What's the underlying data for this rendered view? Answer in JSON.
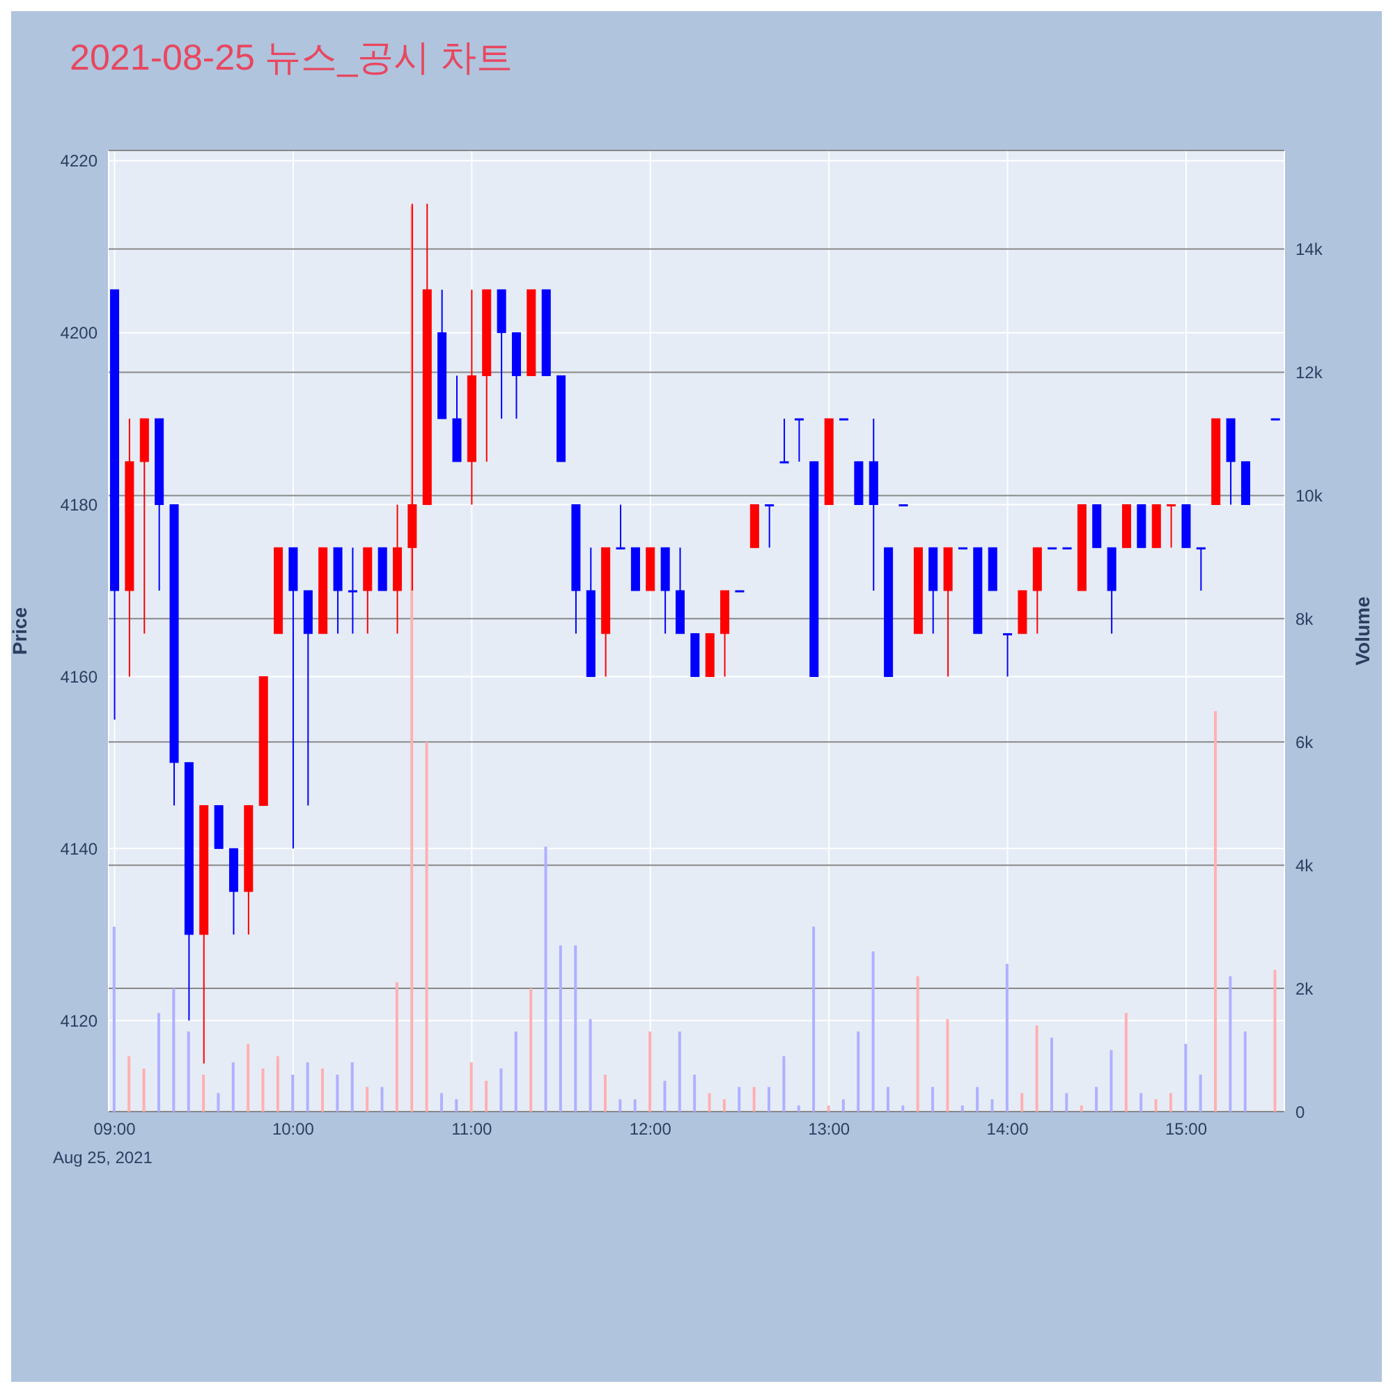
{
  "chart_data": {
    "type": "candlestick",
    "title": "2021-08-25 뉴스_공시 차트",
    "ylabel": "Price",
    "y2label": "Volume",
    "annotations": [
      "Aug 25, 2021"
    ],
    "x": [
      "2021-08-25T09:00",
      "2021-08-25T09:05",
      "2021-08-25T09:10",
      "2021-08-25T09:15",
      "2021-08-25T09:20",
      "2021-08-25T09:25",
      "2021-08-25T09:30",
      "2021-08-25T09:35",
      "2021-08-25T09:40",
      "2021-08-25T09:45",
      "2021-08-25T09:50",
      "2021-08-25T09:55",
      "2021-08-25T10:00",
      "2021-08-25T10:05",
      "2021-08-25T10:10",
      "2021-08-25T10:15",
      "2021-08-25T10:20",
      "2021-08-25T10:25",
      "2021-08-25T10:30",
      "2021-08-25T10:35",
      "2021-08-25T10:40",
      "2021-08-25T10:45",
      "2021-08-25T10:50",
      "2021-08-25T10:55",
      "2021-08-25T11:00",
      "2021-08-25T11:05",
      "2021-08-25T11:10",
      "2021-08-25T11:15",
      "2021-08-25T11:20",
      "2021-08-25T11:25",
      "2021-08-25T11:30",
      "2021-08-25T11:35",
      "2021-08-25T11:40",
      "2021-08-25T11:45",
      "2021-08-25T11:50",
      "2021-08-25T11:55",
      "2021-08-25T12:00",
      "2021-08-25T12:05",
      "2021-08-25T12:10",
      "2021-08-25T12:15",
      "2021-08-25T12:20",
      "2021-08-25T12:25",
      "2021-08-25T12:30",
      "2021-08-25T12:35",
      "2021-08-25T12:40",
      "2021-08-25T12:45",
      "2021-08-25T12:50",
      "2021-08-25T12:55",
      "2021-08-25T13:00",
      "2021-08-25T13:05",
      "2021-08-25T13:10",
      "2021-08-25T13:15",
      "2021-08-25T13:20",
      "2021-08-25T13:25",
      "2021-08-25T13:30",
      "2021-08-25T13:35",
      "2021-08-25T13:40",
      "2021-08-25T13:45",
      "2021-08-25T13:50",
      "2021-08-25T13:55",
      "2021-08-25T14:00",
      "2021-08-25T14:05",
      "2021-08-25T14:10",
      "2021-08-25T14:15",
      "2021-08-25T14:20",
      "2021-08-25T14:25",
      "2021-08-25T14:30",
      "2021-08-25T14:35",
      "2021-08-25T14:40",
      "2021-08-25T14:45",
      "2021-08-25T14:50",
      "2021-08-25T14:55",
      "2021-08-25T15:00",
      "2021-08-25T15:05",
      "2021-08-25T15:10",
      "2021-08-25T15:15",
      "2021-08-25T15:20",
      "2021-08-25T15:30"
    ],
    "series": [
      {
        "ohlc": [
          [
            4205,
            4205,
            4155,
            4170
          ],
          [
            4170,
            4190,
            4160,
            4185
          ],
          [
            4185,
            4190,
            4165,
            4190
          ],
          [
            4190,
            4190,
            4170,
            4180
          ],
          [
            4180,
            4180,
            4145,
            4150
          ],
          [
            4150,
            4150,
            4120,
            4130
          ],
          [
            4130,
            4145,
            4115,
            4145
          ],
          [
            4145,
            4145,
            4140,
            4140
          ],
          [
            4140,
            4140,
            4130,
            4135
          ],
          [
            4135,
            4145,
            4130,
            4145
          ],
          [
            4145,
            4160,
            4145,
            4160
          ],
          [
            4165,
            4175,
            4165,
            4175
          ],
          [
            4175,
            4175,
            4140,
            4170
          ],
          [
            4170,
            4170,
            4145,
            4165
          ],
          [
            4165,
            4175,
            4165,
            4175
          ],
          [
            4175,
            4175,
            4165,
            4170
          ],
          [
            4170,
            4175,
            4165,
            4170
          ],
          [
            4170,
            4175,
            4165,
            4175
          ],
          [
            4175,
            4175,
            4170,
            4170
          ],
          [
            4170,
            4180,
            4165,
            4175
          ],
          [
            4175,
            4215,
            4170,
            4180
          ],
          [
            4180,
            4215,
            4180,
            4205
          ],
          [
            4200,
            4205,
            4190,
            4190
          ],
          [
            4190,
            4195,
            4185,
            4185
          ],
          [
            4185,
            4205,
            4180,
            4195
          ],
          [
            4195,
            4205,
            4185,
            4205
          ],
          [
            4205,
            4205,
            4190,
            4200
          ],
          [
            4200,
            4200,
            4190,
            4195
          ],
          [
            4195,
            4205,
            4195,
            4205
          ],
          [
            4205,
            4205,
            4195,
            4195
          ],
          [
            4195,
            4195,
            4185,
            4185
          ],
          [
            4180,
            4180,
            4165,
            4170
          ],
          [
            4170,
            4175,
            4160,
            4160
          ],
          [
            4165,
            4175,
            4160,
            4175
          ],
          [
            4175,
            4180,
            4175,
            4175
          ],
          [
            4175,
            4175,
            4170,
            4170
          ],
          [
            4170,
            4175,
            4170,
            4175
          ],
          [
            4175,
            4175,
            4165,
            4170
          ],
          [
            4170,
            4175,
            4165,
            4165
          ],
          [
            4165,
            4165,
            4160,
            4160
          ],
          [
            4160,
            4165,
            4160,
            4165
          ],
          [
            4165,
            4170,
            4160,
            4170
          ],
          [
            4170,
            4170,
            4170,
            4170
          ],
          [
            4175,
            4180,
            4175,
            4180
          ],
          [
            4180,
            4180,
            4175,
            4180
          ],
          [
            4185,
            4190,
            4185,
            4185
          ],
          [
            4190,
            4190,
            4185,
            4190
          ],
          [
            4185,
            4185,
            4160,
            4160
          ],
          [
            4180,
            4190,
            4180,
            4190
          ],
          [
            4190,
            4190,
            4190,
            4190
          ],
          [
            4185,
            4185,
            4180,
            4180
          ],
          [
            4185,
            4190,
            4170,
            4180
          ],
          [
            4175,
            4175,
            4160,
            4160
          ],
          [
            4180,
            4180,
            4180,
            4180
          ],
          [
            4165,
            4175,
            4165,
            4175
          ],
          [
            4175,
            4175,
            4165,
            4170
          ],
          [
            4170,
            4175,
            4160,
            4175
          ],
          [
            4175,
            4175,
            4175,
            4175
          ],
          [
            4175,
            4175,
            4165,
            4165
          ],
          [
            4175,
            4175,
            4170,
            4170
          ],
          [
            4165,
            4165,
            4160,
            4165
          ],
          [
            4165,
            4170,
            4165,
            4170
          ],
          [
            4170,
            4175,
            4165,
            4175
          ],
          [
            4175,
            4175,
            4175,
            4175
          ],
          [
            4175,
            4175,
            4175,
            4175
          ],
          [
            4170,
            4180,
            4170,
            4180
          ],
          [
            4180,
            4180,
            4175,
            4175
          ],
          [
            4175,
            4175,
            4165,
            4170
          ],
          [
            4175,
            4180,
            4175,
            4180
          ],
          [
            4180,
            4180,
            4175,
            4175
          ],
          [
            4175,
            4180,
            4175,
            4180
          ],
          [
            4180,
            4180,
            4175,
            4180
          ],
          [
            4180,
            4180,
            4175,
            4175
          ],
          [
            4175,
            4175,
            4170,
            4175
          ],
          [
            4180,
            4190,
            4180,
            4190
          ],
          [
            4190,
            4190,
            4180,
            4185
          ],
          [
            4185,
            4185,
            4180,
            4180
          ],
          [
            4190,
            4190,
            4190,
            4190
          ]
        ],
        "colors": [
          "#0000ff",
          "#ff0000",
          "#ff0000",
          "#0000ff",
          "#0000ff",
          "#0000ff",
          "#ff0000",
          "#0000ff",
          "#0000ff",
          "#ff0000",
          "#ff0000",
          "#ff0000",
          "#0000ff",
          "#0000ff",
          "#ff0000",
          "#0000ff",
          "#0000ff",
          "#ff0000",
          "#0000ff",
          "#ff0000",
          "#ff0000",
          "#ff0000",
          "#0000ff",
          "#0000ff",
          "#ff0000",
          "#ff0000",
          "#0000ff",
          "#0000ff",
          "#ff0000",
          "#0000ff",
          "#0000ff",
          "#0000ff",
          "#0000ff",
          "#ff0000",
          "#0000ff",
          "#0000ff",
          "#ff0000",
          "#0000ff",
          "#0000ff",
          "#0000ff",
          "#ff0000",
          "#ff0000",
          "#0000ff",
          "#ff0000",
          "#0000ff",
          "#0000ff",
          "#0000ff",
          "#0000ff",
          "#ff0000",
          "#0000ff",
          "#0000ff",
          "#0000ff",
          "#0000ff",
          "#0000ff",
          "#ff0000",
          "#0000ff",
          "#ff0000",
          "#0000ff",
          "#0000ff",
          "#0000ff",
          "#0000ff",
          "#ff0000",
          "#ff0000",
          "#0000ff",
          "#0000ff",
          "#ff0000",
          "#0000ff",
          "#0000ff",
          "#ff0000",
          "#0000ff",
          "#ff0000",
          "#ff0000",
          "#0000ff",
          "#0000ff",
          "#ff0000",
          "#0000ff",
          "#0000ff",
          "#0000ff"
        ]
      },
      {
        "type": "bar",
        "axis": "y2",
        "values": [
          3000,
          900,
          700,
          1600,
          2000,
          1300,
          600,
          300,
          800,
          1100,
          700,
          900,
          600,
          800,
          700,
          600,
          800,
          400,
          400,
          2100,
          14700,
          6000,
          300,
          200,
          800,
          500,
          700,
          1300,
          2000,
          4300,
          2700,
          2700,
          1500,
          600,
          200,
          200,
          1300,
          500,
          1300,
          600,
          300,
          200,
          400,
          400,
          400,
          900,
          100,
          3000,
          100,
          200,
          1300,
          2600,
          400,
          100,
          2200,
          400,
          1500,
          100,
          400,
          200,
          2400,
          300,
          1400,
          1200,
          300,
          100,
          400,
          1000,
          1600,
          300,
          200,
          300,
          1100,
          600,
          6500,
          2200,
          1300,
          2300
        ],
        "colors": [
          "#b0b0ff",
          "#ffb0b0",
          "#ffb0b0",
          "#b0b0ff",
          "#b0b0ff",
          "#b0b0ff",
          "#ffb0b0",
          "#b0b0ff",
          "#b0b0ff",
          "#ffb0b0",
          "#ffb0b0",
          "#ffb0b0",
          "#b0b0ff",
          "#b0b0ff",
          "#ffb0b0",
          "#b0b0ff",
          "#b0b0ff",
          "#ffb0b0",
          "#b0b0ff",
          "#ffb0b0",
          "#ffb0b0",
          "#ffb0b0",
          "#b0b0ff",
          "#b0b0ff",
          "#ffb0b0",
          "#ffb0b0",
          "#b0b0ff",
          "#b0b0ff",
          "#ffb0b0",
          "#b0b0ff",
          "#b0b0ff",
          "#b0b0ff",
          "#b0b0ff",
          "#ffb0b0",
          "#b0b0ff",
          "#b0b0ff",
          "#ffb0b0",
          "#b0b0ff",
          "#b0b0ff",
          "#b0b0ff",
          "#ffb0b0",
          "#ffb0b0",
          "#b0b0ff",
          "#ffb0b0",
          "#b0b0ff",
          "#b0b0ff",
          "#b0b0ff",
          "#b0b0ff",
          "#ffb0b0",
          "#b0b0ff",
          "#b0b0ff",
          "#b0b0ff",
          "#b0b0ff",
          "#b0b0ff",
          "#ffb0b0",
          "#b0b0ff",
          "#ffb0b0",
          "#b0b0ff",
          "#b0b0ff",
          "#b0b0ff",
          "#b0b0ff",
          "#ffb0b0",
          "#ffb0b0",
          "#b0b0ff",
          "#b0b0ff",
          "#ffb0b0",
          "#b0b0ff",
          "#b0b0ff",
          "#ffb0b0",
          "#b0b0ff",
          "#ffb0b0",
          "#ffb0b0",
          "#b0b0ff",
          "#b0b0ff",
          "#ffb0b0",
          "#b0b0ff",
          "#b0b0ff",
          "#ffb0b0"
        ]
      }
    ],
    "xlim": [
      "2021-08-25T08:58",
      "2021-08-25T15:33"
    ],
    "xticks": [
      {
        "value": "2021-08-25T09:00",
        "label": "09:00"
      },
      {
        "value": "2021-08-25T10:00",
        "label": "10:00"
      },
      {
        "value": "2021-08-25T11:00",
        "label": "11:00"
      },
      {
        "value": "2021-08-25T12:00",
        "label": "12:00"
      },
      {
        "value": "2021-08-25T13:00",
        "label": "13:00"
      },
      {
        "value": "2021-08-25T14:00",
        "label": "14:00"
      },
      {
        "value": "2021-08-25T15:00",
        "label": "15:00"
      }
    ],
    "ylim": [
      4109.4,
      4221.2
    ],
    "yticks": [
      4120,
      4140,
      4160,
      4180,
      4200,
      4220
    ],
    "y2lim": [
      0,
      15600
    ],
    "y2ticks": [
      0,
      {
        "value": 2000,
        "label": "2k"
      },
      {
        "value": 4000,
        "label": "4k"
      },
      {
        "value": 6000,
        "label": "6k"
      },
      {
        "value": 8000,
        "label": "8k"
      },
      {
        "value": 10000,
        "label": "10k"
      },
      {
        "value": 12000,
        "label": "12k"
      },
      {
        "value": 14000,
        "label": "14k"
      }
    ],
    "grid": true
  }
}
